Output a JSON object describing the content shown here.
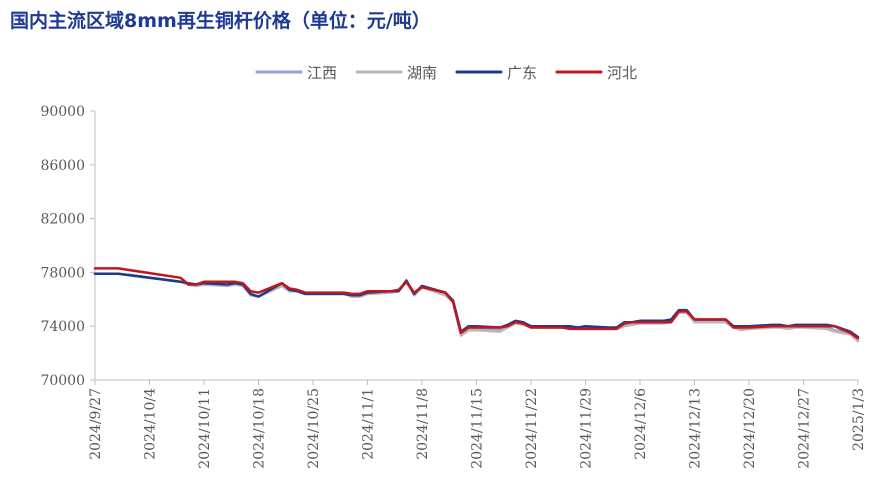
{
  "chart_data": {
    "type": "line",
    "title": "国内主流区域8mm再生铜杆价格（单位：元/吨）",
    "ylim": [
      70000,
      90000
    ],
    "yticks": [
      70000,
      74000,
      78000,
      82000,
      86000,
      90000
    ],
    "xticks": [
      "2024/9/27",
      "2024/10/4",
      "2024/10/11",
      "2024/10/18",
      "2024/10/25",
      "2024/11/1",
      "2024/11/8",
      "2024/11/15",
      "2024/11/22",
      "2024/11/29",
      "2024/12/6",
      "2024/12/13",
      "2024/12/20",
      "2024/12/27",
      "2025/1/3"
    ],
    "legend_position": "top-center",
    "grid": false,
    "x": [
      "2024/9/27",
      "2024/9/30",
      "2024/10/8",
      "2024/10/9",
      "2024/10/10",
      "2024/10/11",
      "2024/10/14",
      "2024/10/15",
      "2024/10/16",
      "2024/10/17",
      "2024/10/18",
      "2024/10/21",
      "2024/10/22",
      "2024/10/23",
      "2024/10/24",
      "2024/10/25",
      "2024/10/28",
      "2024/10/29",
      "2024/10/30",
      "2024/10/31",
      "2024/11/1",
      "2024/11/4",
      "2024/11/5",
      "2024/11/6",
      "2024/11/7",
      "2024/11/8",
      "2024/11/11",
      "2024/11/12",
      "2024/11/13",
      "2024/11/14",
      "2024/11/15",
      "2024/11/18",
      "2024/11/19",
      "2024/11/20",
      "2024/11/21",
      "2024/11/22",
      "2024/11/25",
      "2024/11/26",
      "2024/11/27",
      "2024/11/28",
      "2024/11/29",
      "2024/12/2",
      "2024/12/3",
      "2024/12/4",
      "2024/12/5",
      "2024/12/6",
      "2024/12/9",
      "2024/12/10",
      "2024/12/11",
      "2024/12/12",
      "2024/12/13",
      "2024/12/16",
      "2024/12/17",
      "2024/12/18",
      "2024/12/19",
      "2024/12/20",
      "2024/12/23",
      "2024/12/24",
      "2024/12/25",
      "2024/12/26",
      "2024/12/27",
      "2024/12/30",
      "2024/12/31",
      "2025/1/2",
      "2025/1/3"
    ],
    "series": [
      {
        "name": "江西",
        "color": "#8fa3d9",
        "values": [
          77900,
          77900,
          77300,
          77100,
          77000,
          77100,
          77000,
          77100,
          77000,
          76300,
          76200,
          77000,
          76600,
          76600,
          76400,
          76400,
          76400,
          76400,
          76200,
          76200,
          76400,
          76500,
          76600,
          77300,
          76300,
          76900,
          76400,
          75800,
          73400,
          73800,
          73800,
          73700,
          74000,
          74300,
          74200,
          73900,
          73900,
          73900,
          73900,
          73800,
          73900,
          73800,
          73800,
          74100,
          74200,
          74300,
          74300,
          74400,
          75100,
          75100,
          74400,
          74400,
          74400,
          74000,
          73800,
          73900,
          74000,
          74000,
          73900,
          74000,
          74000,
          73900,
          73700,
          73500,
          72900
        ]
      },
      {
        "name": "湖南",
        "color": "#b8b8b8",
        "values": [
          77900,
          77900,
          77300,
          77100,
          77000,
          77100,
          77000,
          77100,
          77000,
          76300,
          76200,
          77000,
          76600,
          76600,
          76400,
          76400,
          76400,
          76400,
          76200,
          76200,
          76400,
          76500,
          76600,
          77300,
          76300,
          76900,
          76300,
          75800,
          73300,
          73700,
          73700,
          73600,
          73900,
          74200,
          74100,
          73900,
          73900,
          73900,
          73900,
          73800,
          73800,
          73800,
          73800,
          74000,
          74100,
          74200,
          74200,
          74300,
          75000,
          75000,
          74300,
          74300,
          74300,
          73900,
          73700,
          73800,
          73900,
          73900,
          73800,
          73900,
          73900,
          73800,
          73600,
          73400,
          72900
        ]
      },
      {
        "name": "广东",
        "color": "#1a3a8c",
        "values": [
          77900,
          77900,
          77300,
          77200,
          77100,
          77200,
          77100,
          77200,
          77100,
          76400,
          76200,
          77200,
          76700,
          76600,
          76400,
          76400,
          76400,
          76400,
          76300,
          76300,
          76500,
          76600,
          76600,
          77400,
          76400,
          77000,
          76500,
          75900,
          73600,
          74000,
          74000,
          73900,
          74100,
          74400,
          74300,
          74000,
          74000,
          74000,
          74000,
          73900,
          74000,
          73900,
          73900,
          74300,
          74300,
          74400,
          74400,
          74500,
          75200,
          75200,
          74500,
          74500,
          74500,
          74000,
          74000,
          74000,
          74100,
          74100,
          74000,
          74100,
          74100,
          74100,
          74000,
          73600,
          73200
        ]
      },
      {
        "name": "河北",
        "color": "#c0161e",
        "values": [
          78300,
          78300,
          77600,
          77100,
          77100,
          77300,
          77300,
          77300,
          77200,
          76600,
          76500,
          77200,
          76800,
          76700,
          76500,
          76500,
          76500,
          76500,
          76400,
          76400,
          76600,
          76600,
          76700,
          77300,
          76500,
          76900,
          76500,
          75800,
          73500,
          73900,
          73900,
          73900,
          74000,
          74300,
          74200,
          73900,
          73900,
          73900,
          73800,
          73800,
          73800,
          73800,
          73800,
          74200,
          74300,
          74300,
          74300,
          74300,
          75100,
          75100,
          74500,
          74500,
          74500,
          73900,
          73900,
          73900,
          74000,
          74000,
          74000,
          74000,
          74000,
          74000,
          74000,
          73500,
          73100
        ]
      }
    ]
  }
}
